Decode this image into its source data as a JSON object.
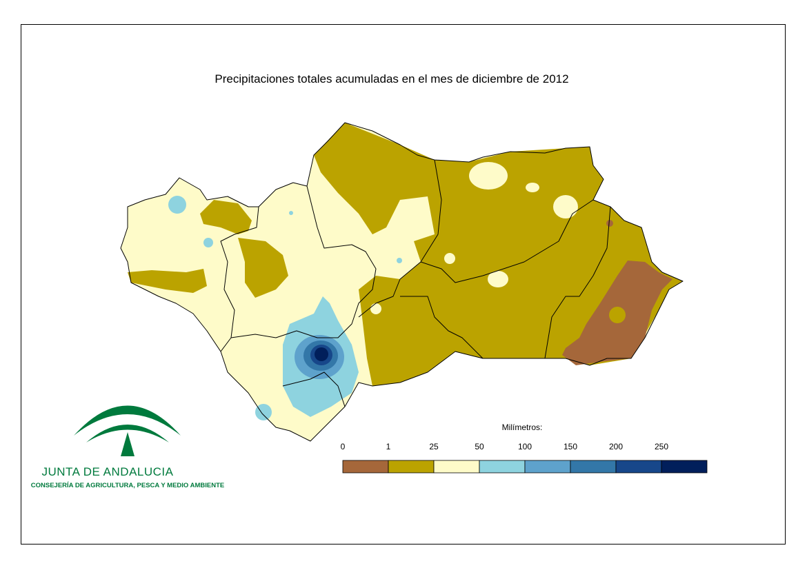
{
  "title": "Precipitaciones totales acumuladas en el mes de diciembre de 2012",
  "legend": {
    "title": "Milímetros:",
    "ticks": [
      0,
      1,
      25,
      50,
      100,
      150,
      200,
      250
    ],
    "colors": [
      "#a5673a",
      "#bba300",
      "#fefbc9",
      "#8ed3df",
      "#5ea2cc",
      "#3377a8",
      "#17478a",
      "#011f5b"
    ]
  },
  "logo": {
    "name": "JUNTA DE ANDALUCIA",
    "department": "CONSEJERÍA DE AGRICULTURA, PESCA Y MEDIO AMBIENTE"
  }
}
